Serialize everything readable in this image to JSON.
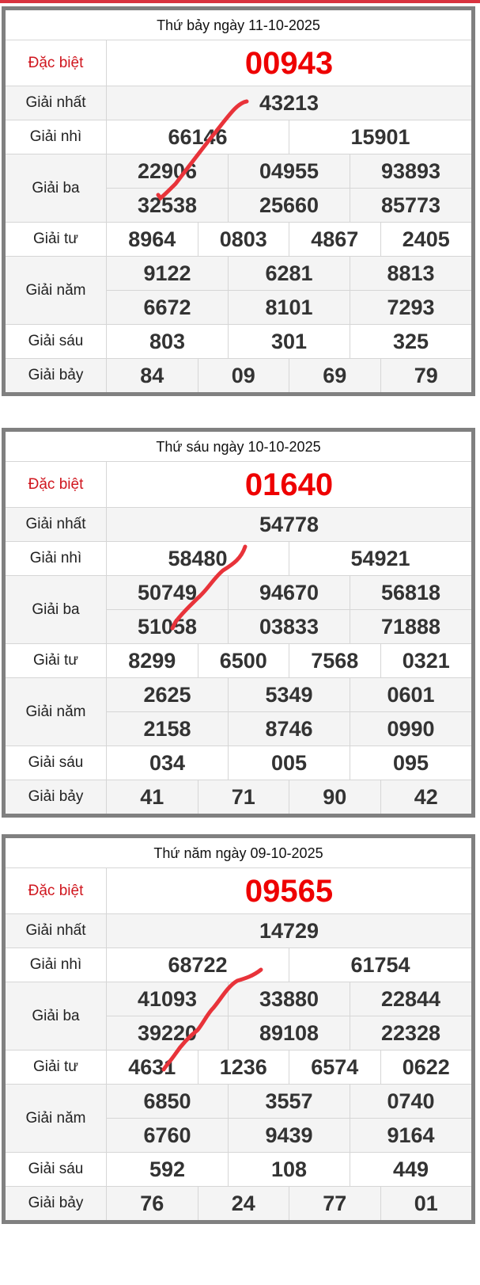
{
  "colors": {
    "special": "#e00000",
    "border": "#808080",
    "ink": "#e8333a"
  },
  "labels": {
    "special": "Đặc biệt",
    "g1": "Giải nhất",
    "g2": "Giải nhì",
    "g3": "Giải ba",
    "g4": "Giải tư",
    "g5": "Giải năm",
    "g6": "Giải sáu",
    "g7": "Giải bảy"
  },
  "draws": [
    {
      "title": "Thứ bảy ngày 11-10-2025",
      "special": "00943",
      "g1": [
        "43213"
      ],
      "g2": [
        "66146",
        "15901"
      ],
      "g3": [
        [
          "22906",
          "04955",
          "93893"
        ],
        [
          "32538",
          "25660",
          "85773"
        ]
      ],
      "g4": [
        "8964",
        "0803",
        "4867",
        "2405"
      ],
      "g5": [
        [
          "9122",
          "6281",
          "8813"
        ],
        [
          "6672",
          "8101",
          "7293"
        ]
      ],
      "g6": [
        "803",
        "301",
        "325"
      ],
      "g7": [
        "84",
        "09",
        "69",
        "79"
      ]
    },
    {
      "title": "Thứ sáu ngày 10-10-2025",
      "special": "01640",
      "g1": [
        "54778"
      ],
      "g2": [
        "58480",
        "54921"
      ],
      "g3": [
        [
          "50749",
          "94670",
          "56818"
        ],
        [
          "51058",
          "03833",
          "71888"
        ]
      ],
      "g4": [
        "8299",
        "6500",
        "7568",
        "0321"
      ],
      "g5": [
        [
          "2625",
          "5349",
          "0601"
        ],
        [
          "2158",
          "8746",
          "0990"
        ]
      ],
      "g6": [
        "034",
        "005",
        "095"
      ],
      "g7": [
        "41",
        "71",
        "90",
        "42"
      ]
    },
    {
      "title": "Thứ năm ngày 09-10-2025",
      "special": "09565",
      "g1": [
        "14729"
      ],
      "g2": [
        "68722",
        "61754"
      ],
      "g3": [
        [
          "41093",
          "33880",
          "22844"
        ],
        [
          "39220",
          "89108",
          "22328"
        ]
      ],
      "g4": [
        "4631",
        "1236",
        "6574",
        "0622"
      ],
      "g5": [
        [
          "6850",
          "3557",
          "0740"
        ],
        [
          "6760",
          "9439",
          "9164"
        ]
      ],
      "g6": [
        "592",
        "108",
        "449"
      ],
      "g7": [
        "76",
        "24",
        "77",
        "01"
      ]
    }
  ]
}
